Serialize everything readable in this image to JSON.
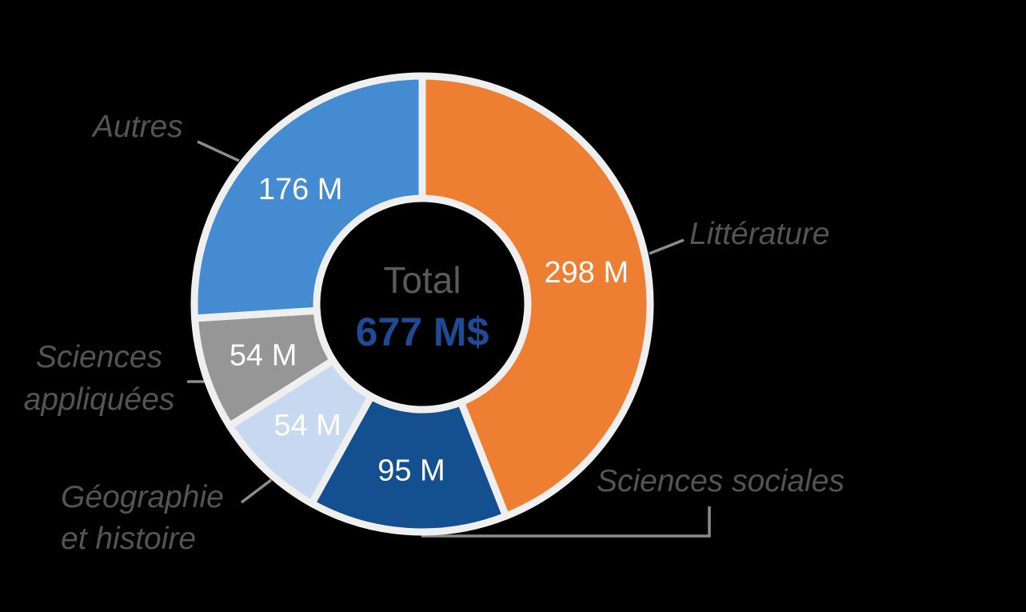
{
  "figure": {
    "background_color": "#000000",
    "ring_color": "#EFEFEF",
    "leader_line_color": "#8C8C8C"
  },
  "center": {
    "label": "Total",
    "value": "677 M$",
    "label_color": "#5A5A5A",
    "value_color": "#1E4B96"
  },
  "chart_data": {
    "type": "pie",
    "subtype": "donut",
    "title": "",
    "center_label": "Total",
    "center_value": "677 M$",
    "total": 677,
    "unit": "M$",
    "categories": [
      "Littérature",
      "Sciences sociales",
      "Géographie et histoire",
      "Sciences appliquées",
      "Autres"
    ],
    "values": [
      298,
      95,
      54,
      54,
      176
    ],
    "value_labels": [
      "298 M",
      "95 M",
      "54 M",
      "54 M",
      "176 M"
    ],
    "display_labels": [
      "Littérature",
      "Sciences sociales",
      "Géographie\net histoire",
      "Sciences\nappliquées",
      "Autres"
    ],
    "keys": [
      "litterature",
      "sciences-sociales",
      "geographie-et-histoire",
      "sciences-appliquees",
      "autres"
    ],
    "colors": [
      "#EE7E31",
      "#144F90",
      "#C7D9F1",
      "#969696",
      "#458BD1"
    ],
    "value_label_color": "#FFFFFF",
    "start_angle_deg": 0,
    "direction": "clockwise",
    "labels_position": "outside-callouts",
    "legend": "none"
  }
}
